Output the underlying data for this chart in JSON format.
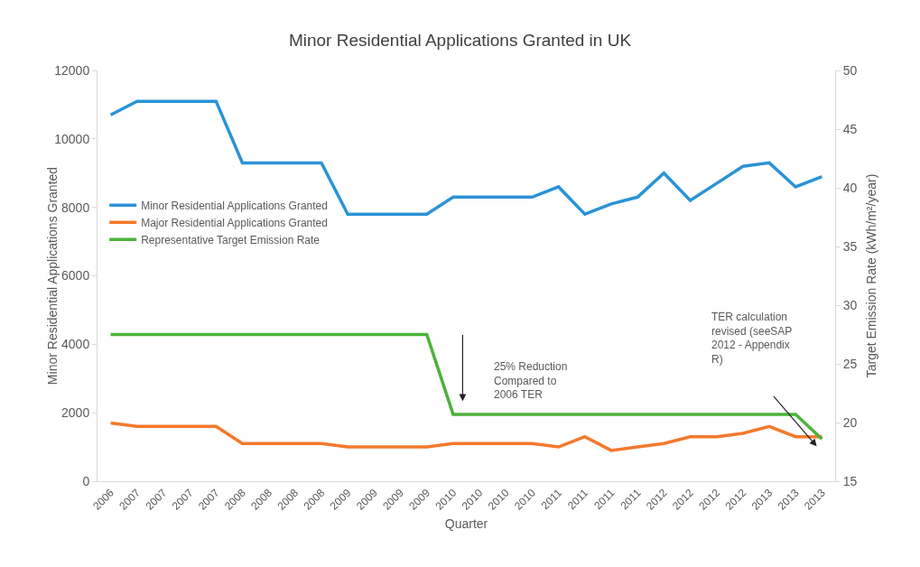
{
  "chart_data": {
    "type": "line",
    "title": "Minor Residential Applications Granted in UK",
    "xlabel": "Quarter",
    "ylabel": "Minor Residential Applications Granted",
    "y2label": "Target Emission Rate (kWh/m²/year)",
    "categories": [
      "2006",
      "2007",
      "2007",
      "2007",
      "2007",
      "2008",
      "2008",
      "2008",
      "2008",
      "2009",
      "2009",
      "2009",
      "2009",
      "2010",
      "2010",
      "2010",
      "2010",
      "2011",
      "2011",
      "2011",
      "2011",
      "2012",
      "2012",
      "2012",
      "2012",
      "2013",
      "2013",
      "2013"
    ],
    "series": [
      {
        "name": "Minor Residential Applications Granted",
        "color": "#2a93d5",
        "values": [
          10700,
          11100,
          11100,
          11100,
          11100,
          9300,
          9300,
          9300,
          9300,
          7800,
          7800,
          7800,
          7800,
          8300,
          8300,
          8300,
          8300,
          8600,
          7800,
          8100,
          8300,
          9000,
          8200,
          8700,
          9200,
          9300,
          8600,
          8900
        ]
      },
      {
        "name": "Major Residential Applications Granted",
        "color": "#f4792b",
        "values": [
          1700,
          1600,
          1600,
          1600,
          1600,
          1100,
          1100,
          1100,
          1100,
          1000,
          1000,
          1000,
          1000,
          1100,
          1100,
          1100,
          1100,
          1000,
          1300,
          900,
          1000,
          1100,
          1300,
          1300,
          1400,
          1600,
          1300,
          1300
        ]
      },
      {
        "name": "Representative Target Emission Rate",
        "color": "#4cb23a",
        "axis": "y2",
        "values": [
          27.5,
          27.5,
          27.5,
          27.5,
          27.5,
          27.5,
          27.5,
          27.5,
          27.5,
          27.5,
          27.5,
          27.5,
          27.5,
          20.7,
          20.7,
          20.7,
          20.7,
          20.7,
          20.7,
          20.7,
          20.7,
          20.7,
          20.7,
          20.7,
          20.7,
          20.7,
          20.7,
          18.6
        ]
      }
    ],
    "ylim": [
      0,
      12000
    ],
    "yticks": [
      0,
      2000,
      4000,
      6000,
      8000,
      10000,
      12000
    ],
    "y2lim": [
      15,
      50
    ],
    "y2ticks": [
      15,
      20,
      25,
      30,
      35,
      40,
      45,
      50
    ],
    "grid": false,
    "legend": "left",
    "marker": "none",
    "line_style": "solid",
    "annotations": [
      "25% Reduction\nCompared to\n2006 TER",
      "TER calculation\nrevised (seeSAP\n2012 - Appendix\nR)"
    ]
  }
}
